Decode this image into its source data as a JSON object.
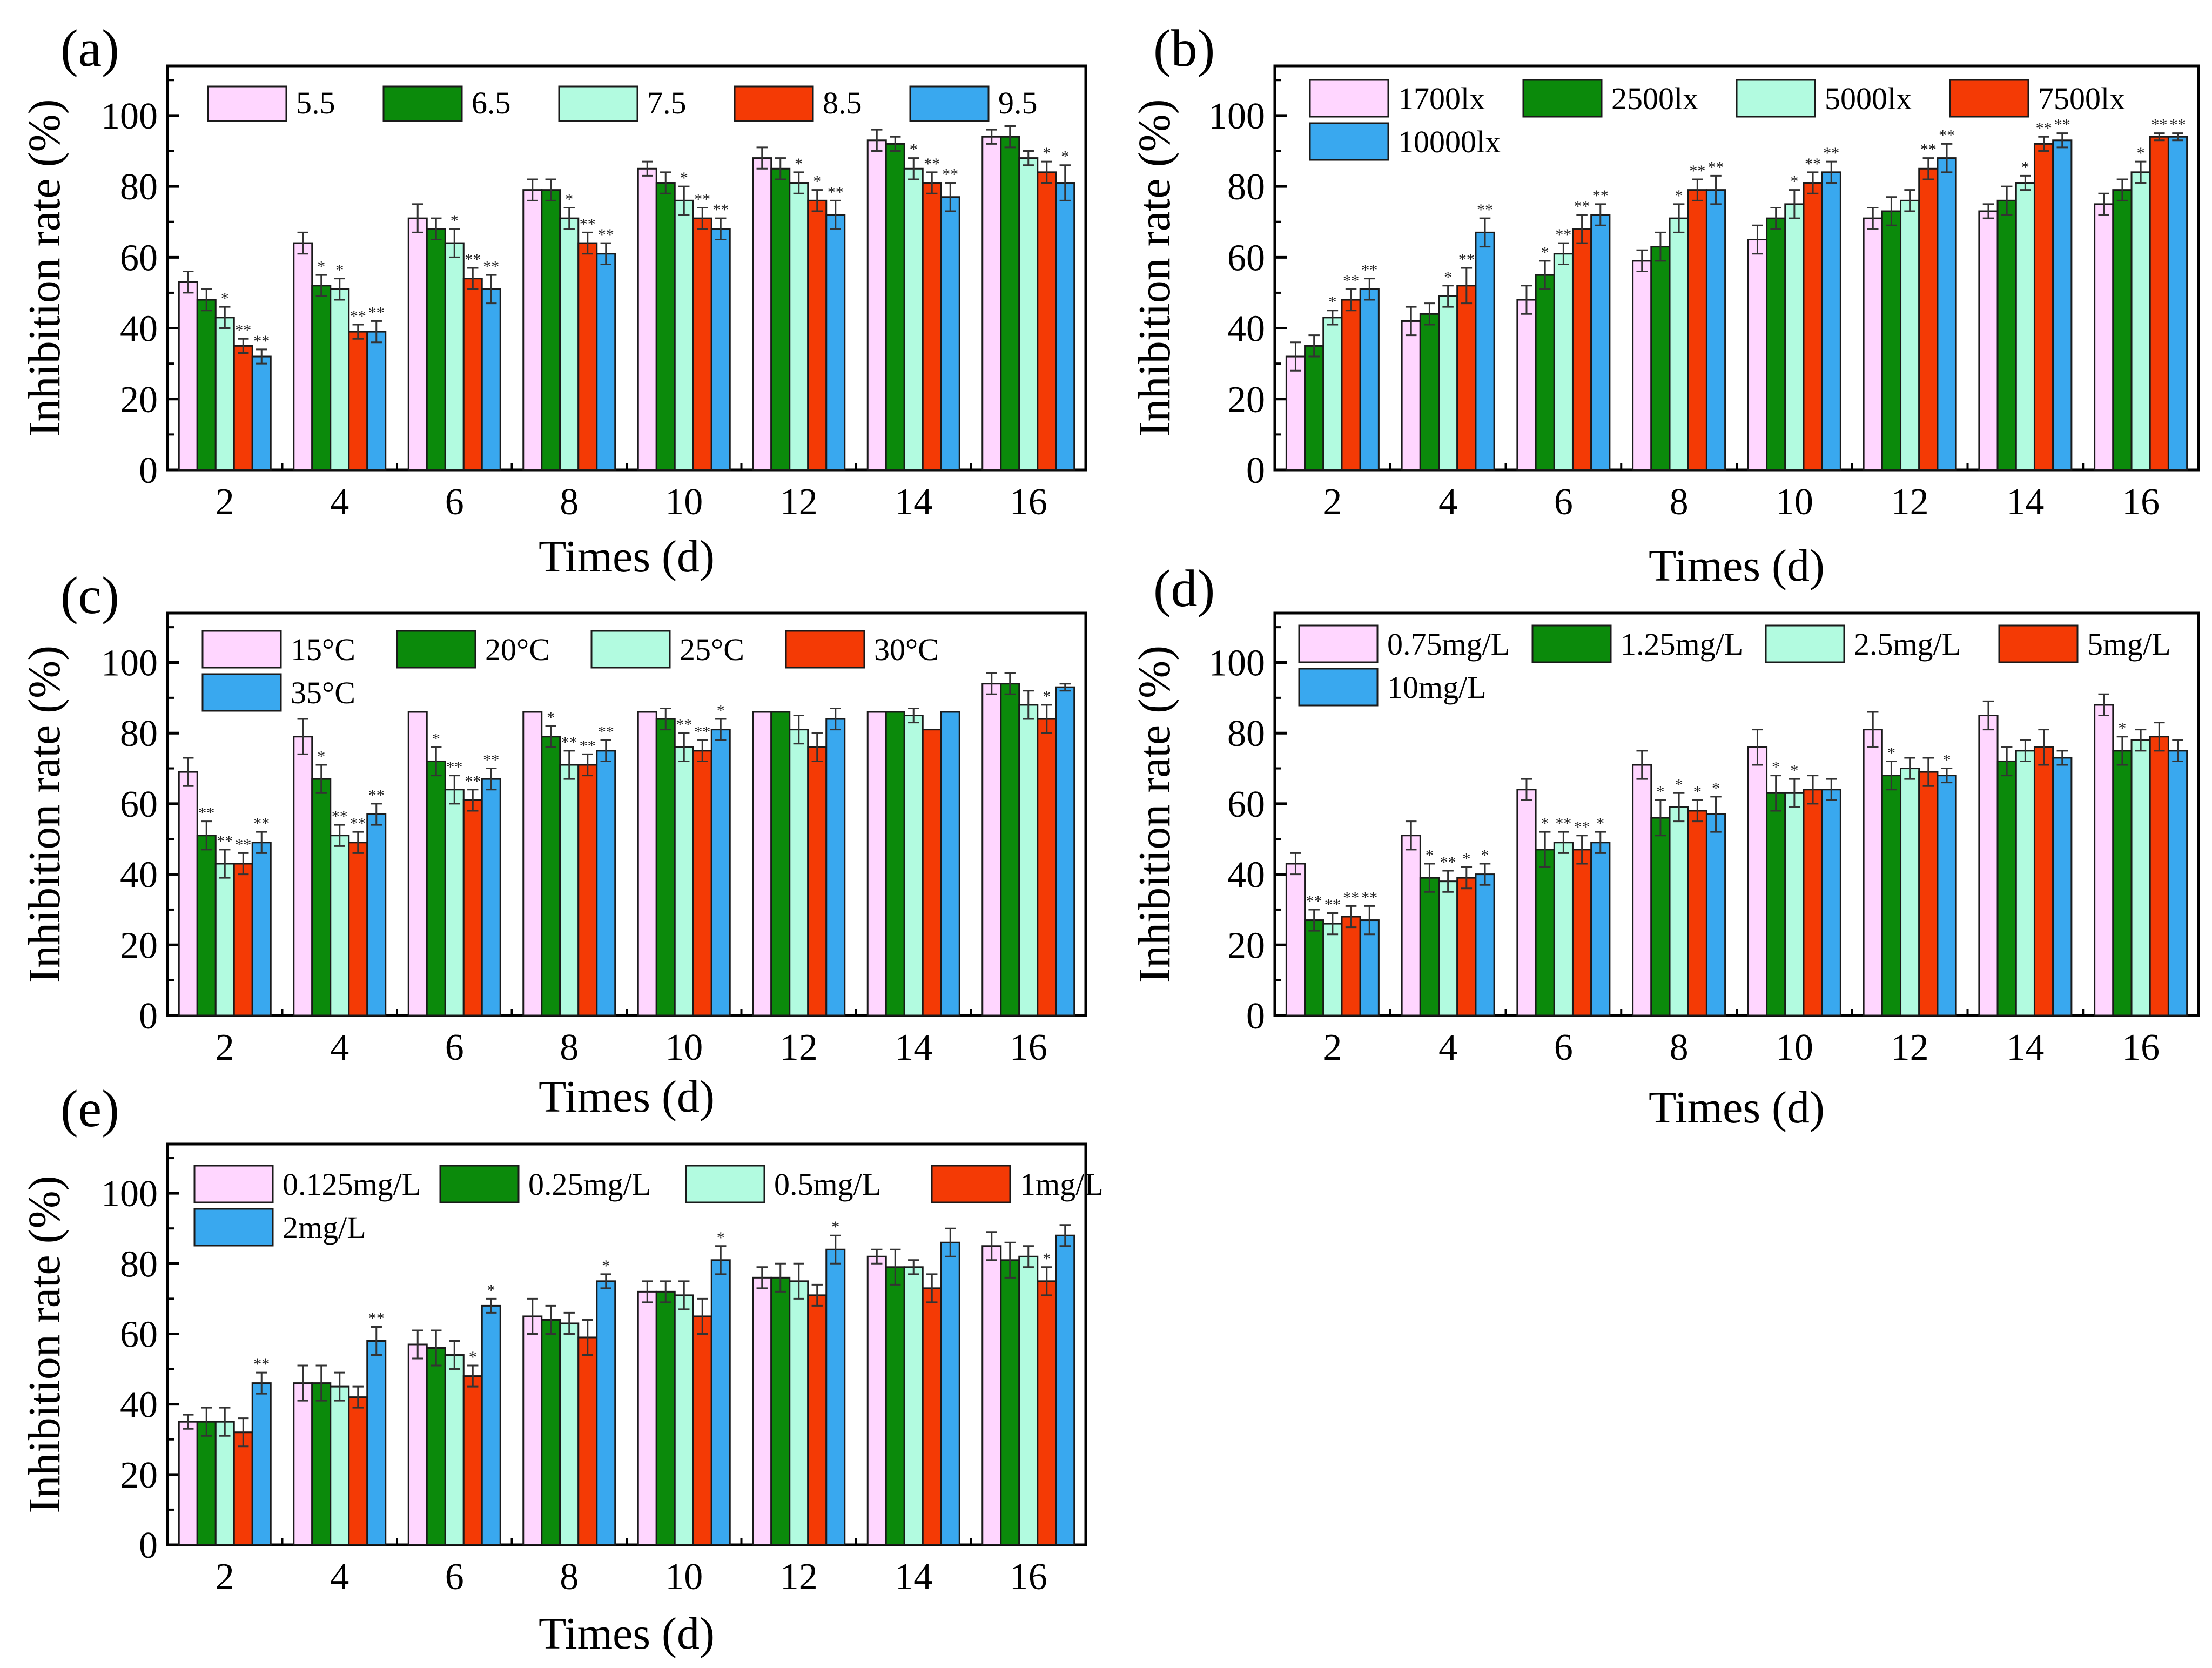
{
  "colors": {
    "series": [
      "#ffd6ff",
      "#0b8a0b",
      "#b2fbe0",
      "#f43a05",
      "#39a8ef"
    ],
    "frame": "#000000",
    "bar_edge": "#1a1a1a"
  },
  "chart_data": [
    {
      "id": "a",
      "panel_label": "(a)",
      "type": "bar",
      "xlabel": "Times (d)",
      "ylabel": "Inhibition rate (%)",
      "ylim": [
        0,
        114
      ],
      "yticks": [
        "0",
        "20",
        "40",
        "60",
        "80",
        "100"
      ],
      "categories": [
        "2",
        "4",
        "6",
        "8",
        "10",
        "12",
        "14",
        "16"
      ],
      "legend_columns": 5,
      "series": [
        {
          "name": "5.5",
          "values": [
            53,
            64,
            71,
            79,
            85,
            88,
            93,
            94
          ],
          "errors": [
            3,
            3,
            4,
            3,
            2,
            3,
            3,
            2
          ],
          "stars": [
            "",
            "",
            "",
            "",
            "",
            "",
            "",
            ""
          ]
        },
        {
          "name": "6.5",
          "values": [
            48,
            52,
            68,
            79,
            81,
            85,
            92,
            94
          ],
          "errors": [
            3,
            3,
            3,
            3,
            3,
            3,
            2,
            3
          ],
          "stars": [
            "",
            "*",
            "",
            "",
            "",
            "",
            "",
            ""
          ]
        },
        {
          "name": "7.5",
          "values": [
            43,
            51,
            64,
            71,
            76,
            81,
            85,
            88
          ],
          "errors": [
            3,
            3,
            4,
            3,
            4,
            3,
            3,
            2
          ],
          "stars": [
            "*",
            "*",
            "*",
            "*",
            "*",
            "*",
            "*",
            ""
          ]
        },
        {
          "name": "8.5",
          "values": [
            35,
            39,
            54,
            64,
            71,
            76,
            81,
            84
          ],
          "errors": [
            2,
            2,
            3,
            3,
            3,
            3,
            3,
            3
          ],
          "stars": [
            "**",
            "**",
            "**",
            "**",
            "**",
            "*",
            "**",
            "*"
          ]
        },
        {
          "name": "9.5",
          "values": [
            32,
            39,
            51,
            61,
            68,
            72,
            77,
            81
          ],
          "errors": [
            2,
            3,
            4,
            3,
            3,
            4,
            4,
            5
          ],
          "stars": [
            "**",
            "**",
            "**",
            "**",
            "**",
            "**",
            "**",
            "*"
          ]
        }
      ]
    },
    {
      "id": "b",
      "panel_label": "(b)",
      "type": "bar",
      "xlabel": "Times (d)",
      "ylabel": "Inhibition rate (%)",
      "ylim": [
        0,
        114
      ],
      "yticks": [
        "0",
        "20",
        "40",
        "60",
        "80",
        "100"
      ],
      "categories": [
        "2",
        "4",
        "6",
        "8",
        "10",
        "12",
        "14",
        "16"
      ],
      "legend_columns": 4,
      "series": [
        {
          "name": "1700lx",
          "values": [
            32,
            42,
            48,
            59,
            65,
            71,
            73,
            75
          ],
          "errors": [
            4,
            4,
            4,
            3,
            4,
            3,
            2,
            3
          ],
          "stars": [
            "",
            "",
            "",
            "",
            "",
            "",
            "",
            ""
          ]
        },
        {
          "name": "2500lx",
          "values": [
            35,
            44,
            55,
            63,
            71,
            73,
            76,
            79
          ],
          "errors": [
            3,
            3,
            4,
            4,
            3,
            4,
            4,
            3
          ],
          "stars": [
            "",
            "",
            "*",
            "",
            "",
            "",
            "",
            ""
          ]
        },
        {
          "name": "5000lx",
          "values": [
            43,
            49,
            61,
            71,
            75,
            76,
            81,
            84
          ],
          "errors": [
            2,
            3,
            3,
            4,
            4,
            3,
            2,
            3
          ],
          "stars": [
            "*",
            "*",
            "**",
            "*",
            "*",
            "",
            "*",
            "*"
          ]
        },
        {
          "name": "7500lx",
          "values": [
            48,
            52,
            68,
            79,
            81,
            85,
            92,
            94
          ],
          "errors": [
            3,
            5,
            4,
            3,
            3,
            3,
            2,
            1
          ],
          "stars": [
            "**",
            "**",
            "**",
            "**",
            "**",
            "**",
            "**",
            "**"
          ]
        },
        {
          "name": "10000lx",
          "values": [
            51,
            67,
            72,
            79,
            84,
            88,
            93,
            94
          ],
          "errors": [
            3,
            4,
            3,
            4,
            3,
            4,
            2,
            1
          ],
          "stars": [
            "**",
            "**",
            "**",
            "**",
            "**",
            "**",
            "**",
            "**"
          ]
        }
      ]
    },
    {
      "id": "c",
      "panel_label": "(c)",
      "type": "bar",
      "xlabel": "Times (d)",
      "ylabel": "Inhibition rate (%)",
      "ylim": [
        0,
        114
      ],
      "yticks": [
        "0",
        "20",
        "40",
        "60",
        "80",
        "100"
      ],
      "categories": [
        "2",
        "4",
        "6",
        "8",
        "10",
        "12",
        "14",
        "16"
      ],
      "legend_columns": 4,
      "series": [
        {
          "name": "15°C",
          "values": [
            69,
            79,
            86,
            86,
            86,
            86,
            86,
            94
          ],
          "errors": [
            4,
            5,
            0,
            0,
            0,
            0,
            0,
            3
          ],
          "stars": [
            "",
            "",
            "",
            "",
            "",
            "",
            "",
            ""
          ]
        },
        {
          "name": "20°C",
          "values": [
            51,
            67,
            72,
            79,
            84,
            86,
            86,
            94
          ],
          "errors": [
            4,
            4,
            4,
            3,
            3,
            0,
            0,
            3
          ],
          "stars": [
            "**",
            "*",
            "*",
            "*",
            "",
            "",
            "",
            ""
          ]
        },
        {
          "name": "25°C",
          "values": [
            43,
            51,
            64,
            71,
            76,
            81,
            85,
            88
          ],
          "errors": [
            4,
            3,
            4,
            4,
            4,
            4,
            2,
            4
          ],
          "stars": [
            "**",
            "**",
            "**",
            "**",
            "**",
            "",
            "",
            ""
          ]
        },
        {
          "name": "30°C",
          "values": [
            43,
            49,
            61,
            71,
            75,
            76,
            81,
            84
          ],
          "errors": [
            3,
            3,
            3,
            3,
            3,
            4,
            0,
            4
          ],
          "stars": [
            "**",
            "**",
            "**",
            "**",
            "**",
            "",
            "",
            "*"
          ]
        },
        {
          "name": "35°C",
          "values": [
            49,
            57,
            67,
            75,
            81,
            84,
            86,
            93
          ],
          "errors": [
            3,
            3,
            3,
            3,
            3,
            3,
            0,
            1
          ],
          "stars": [
            "**",
            "**",
            "**",
            "**",
            "*",
            "",
            "",
            ""
          ]
        }
      ]
    },
    {
      "id": "d",
      "panel_label": "(d)",
      "type": "bar",
      "xlabel": "Times (d)",
      "ylabel": "Inhibition rate (%)",
      "ylim": [
        0,
        114
      ],
      "yticks": [
        "0",
        "20",
        "40",
        "60",
        "80",
        "100"
      ],
      "categories": [
        "2",
        "4",
        "6",
        "8",
        "10",
        "12",
        "14",
        "16"
      ],
      "legend_columns": 4,
      "series": [
        {
          "name": "0.75mg/L",
          "values": [
            43,
            51,
            64,
            71,
            76,
            81,
            85,
            88
          ],
          "errors": [
            3,
            4,
            3,
            4,
            5,
            5,
            4,
            3
          ],
          "stars": [
            "",
            "",
            "",
            "",
            "",
            "",
            "",
            ""
          ]
        },
        {
          "name": "1.25mg/L",
          "values": [
            27,
            39,
            47,
            56,
            63,
            68,
            72,
            75
          ],
          "errors": [
            3,
            4,
            5,
            5,
            5,
            4,
            4,
            4
          ],
          "stars": [
            "**",
            "*",
            "*",
            "*",
            "*",
            "*",
            "",
            "*"
          ]
        },
        {
          "name": "2.5mg/L",
          "values": [
            26,
            38,
            49,
            59,
            63,
            70,
            75,
            78
          ],
          "errors": [
            3,
            3,
            3,
            4,
            4,
            3,
            3,
            3
          ],
          "stars": [
            "**",
            "**",
            "**",
            "*",
            "*",
            "",
            "",
            ""
          ]
        },
        {
          "name": "5mg/L",
          "values": [
            28,
            39,
            47,
            58,
            64,
            69,
            76,
            79
          ],
          "errors": [
            3,
            3,
            4,
            3,
            4,
            4,
            5,
            4
          ],
          "stars": [
            "**",
            "*",
            "**",
            "*",
            "",
            "",
            "",
            ""
          ]
        },
        {
          "name": "10mg/L",
          "values": [
            27,
            40,
            49,
            57,
            64,
            68,
            73,
            75
          ],
          "errors": [
            4,
            3,
            3,
            5,
            3,
            2,
            2,
            3
          ],
          "stars": [
            "**",
            "*",
            "*",
            "*",
            "",
            "*",
            "",
            ""
          ]
        }
      ]
    },
    {
      "id": "e",
      "panel_label": "(e)",
      "type": "bar",
      "xlabel": "Times (d)",
      "ylabel": "Inhibition rate (%)",
      "ylim": [
        0,
        114
      ],
      "yticks": [
        "0",
        "20",
        "40",
        "60",
        "80",
        "100"
      ],
      "categories": [
        "2",
        "4",
        "6",
        "8",
        "10",
        "12",
        "14",
        "16"
      ],
      "legend_columns": 4,
      "series": [
        {
          "name": "0.125mg/L",
          "values": [
            35,
            46,
            57,
            65,
            72,
            76,
            82,
            85
          ],
          "errors": [
            2,
            5,
            4,
            5,
            3,
            3,
            2,
            4
          ],
          "stars": [
            "",
            "",
            "",
            "",
            "",
            "",
            "",
            ""
          ]
        },
        {
          "name": "0.25mg/L",
          "values": [
            35,
            46,
            56,
            64,
            72,
            76,
            79,
            81
          ],
          "errors": [
            4,
            5,
            5,
            4,
            3,
            4,
            5,
            5
          ],
          "stars": [
            "",
            "",
            "",
            "",
            "",
            "",
            "",
            ""
          ]
        },
        {
          "name": "0.5mg/L",
          "values": [
            35,
            45,
            54,
            63,
            71,
            75,
            79,
            82
          ],
          "errors": [
            4,
            4,
            4,
            3,
            4,
            5,
            2,
            3
          ],
          "stars": [
            "",
            "",
            "",
            "",
            "",
            "",
            "",
            ""
          ]
        },
        {
          "name": "1mg/L",
          "values": [
            32,
            42,
            48,
            59,
            65,
            71,
            73,
            75
          ],
          "errors": [
            4,
            3,
            3,
            5,
            5,
            3,
            4,
            4
          ],
          "stars": [
            "",
            "",
            "*",
            "",
            "",
            "",
            "",
            "*"
          ]
        },
        {
          "name": "2mg/L",
          "values": [
            46,
            58,
            68,
            75,
            81,
            84,
            86,
            88
          ],
          "errors": [
            3,
            4,
            2,
            2,
            4,
            4,
            4,
            3
          ],
          "stars": [
            "**",
            "**",
            "*",
            "*",
            "*",
            "*",
            "",
            ""
          ]
        }
      ]
    }
  ]
}
